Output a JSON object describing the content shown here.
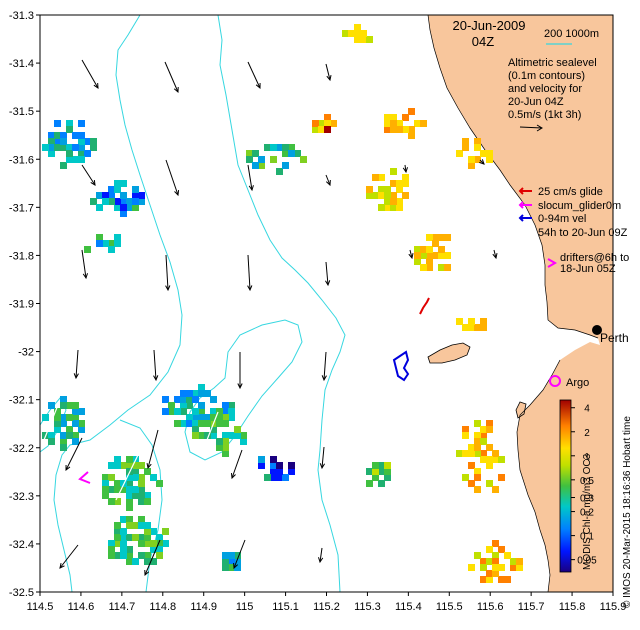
{
  "title": {
    "date": "20-Jun-2009",
    "time": "04Z",
    "isobath_label": "200  1000m"
  },
  "legend": {
    "altimetry_lines": [
      "Altimetric sealevel",
      "(0.1m contours)",
      "and velocity for",
      "20-Jun 04Z"
    ],
    "velocity_scale": "0.5m/s (1kt 3h)",
    "glider_items": [
      "25 cm/s glide",
      "slocum_glider0m",
      "0-94m vel",
      "54h to 20-Jun 09Z"
    ],
    "drifter_lines": [
      "drifters@6h to",
      "18-Jun 05Z"
    ],
    "place_perth": "Perth",
    "place_argo": "Argo"
  },
  "credits": {
    "left": "MODIS Chl-a mg/m3 OC3",
    "right": "© IMOS 20-Mar-2015 18:16:36 Hobart time"
  },
  "axes": {
    "x_ticks": [
      "114.5",
      "114.6",
      "114.7",
      "114.8",
      "114.9",
      "115",
      "115.1",
      "115.2",
      "115.3",
      "115.4",
      "115.5",
      "115.6",
      "115.7",
      "115.8",
      "115.9"
    ],
    "y_ticks": [
      "-31.3",
      "-31.4",
      "-31.5",
      "-31.6",
      "-31.7",
      "-31.8",
      "-31.9",
      "-32",
      "-32.1",
      "-32.2",
      "-32.3",
      "-32.4",
      "-32.5"
    ],
    "x_range": [
      114.5,
      115.9
    ],
    "y_range": [
      -32.5,
      -31.3
    ]
  },
  "colorbar": {
    "tick_labels": [
      "4",
      "2",
      "1",
      "0.5",
      "0.3",
      "0.2",
      "0.1",
      "0.05"
    ]
  },
  "colors": {
    "land": "#f8c69c",
    "isobath": "#37d7e0",
    "glider": "#e00000",
    "slocum": "#ff00ff",
    "velocity": "#0000dd",
    "drifter": "#ff00ff"
  }
}
